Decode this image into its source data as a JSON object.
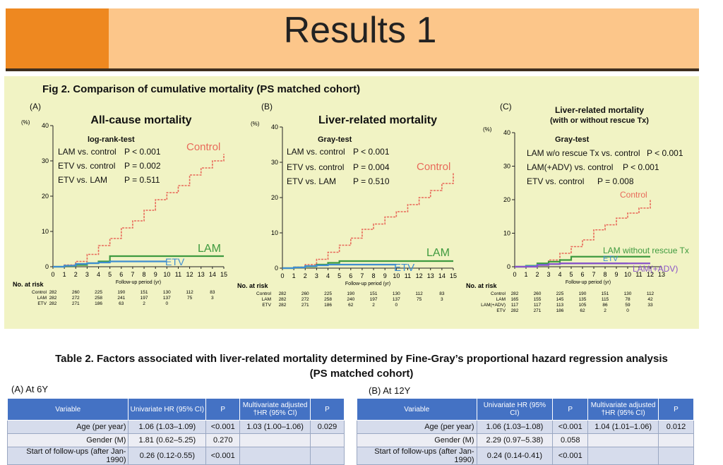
{
  "slide_title": "Results 1",
  "figure": {
    "title": "Fig 2. Comparison of cumulative mortality (PS matched cohort)",
    "colors": {
      "control": "#e86a5a",
      "lam": "#3f9a3f",
      "etv": "#3f8ed0",
      "lam_adv": "#8a52c8"
    },
    "panels": [
      {
        "label": "(A)",
        "title": "All-cause mortality",
        "test_name": "log-rank-test",
        "comparisons": [
          {
            "label": "LAM vs. control",
            "p": "P < 0.001"
          },
          {
            "label": "ETV vs. control",
            "p": "P = 0.002"
          },
          {
            "label": "ETV vs. LAM",
            "p": "P = 0.511"
          }
        ],
        "y_unit": "(%)",
        "y_ticks": [
          "0",
          "10",
          "20",
          "30",
          "40"
        ],
        "x_ticks": [
          "0",
          "1",
          "2",
          "3",
          "4",
          "5",
          "6",
          "7",
          "8",
          "9",
          "10",
          "11",
          "12",
          "13",
          "14",
          "15"
        ],
        "xlabel": "Follow-up period (yr)",
        "series_labels": {
          "control": "Control",
          "lam": "LAM",
          "etv": "ETV"
        },
        "risk_header": "No. at risk",
        "risk_rows": [
          {
            "name": "Control",
            "values": [
              "282",
              "260",
              "225",
              "190",
              "151",
              "130",
              "112",
              "83"
            ]
          },
          {
            "name": "LAM",
            "values": [
              "282",
              "272",
              "258",
              "241",
              "197",
              "137",
              "75",
              "3"
            ]
          },
          {
            "name": "ETV",
            "values": [
              "282",
              "271",
              "186",
              "63",
              "2",
              "0"
            ]
          }
        ]
      },
      {
        "label": "(B)",
        "title": "Liver-related mortality",
        "test_name": "Gray-test",
        "comparisons": [
          {
            "label": "LAM vs. control",
            "p": "P < 0.001"
          },
          {
            "label": "ETV vs. control",
            "p": "P = 0.004"
          },
          {
            "label": "ETV vs. LAM",
            "p": "P = 0.510"
          }
        ],
        "y_unit": "(%)",
        "y_ticks": [
          "0",
          "10",
          "20",
          "30",
          "40"
        ],
        "x_ticks": [
          "0",
          "1",
          "2",
          "3",
          "4",
          "5",
          "6",
          "7",
          "8",
          "9",
          "10",
          "11",
          "12",
          "13",
          "14",
          "15"
        ],
        "xlabel": "Follow-up period (yr)",
        "series_labels": {
          "control": "Control",
          "lam": "LAM",
          "etv": "ETV"
        },
        "risk_header": "No. at risk",
        "risk_rows": [
          {
            "name": "Control",
            "values": [
              "282",
              "260",
              "225",
              "190",
              "151",
              "130",
              "112",
              "83"
            ]
          },
          {
            "name": "LAM",
            "values": [
              "282",
              "272",
              "258",
              "240",
              "197",
              "137",
              "75",
              "3"
            ]
          },
          {
            "name": "ETV",
            "values": [
              "282",
              "271",
              "186",
              "62",
              "2",
              "0"
            ]
          }
        ]
      },
      {
        "label": "(C)",
        "title": "Liver-related mortality",
        "subtitle": "(with or without rescue Tx)",
        "test_name": "Gray-test",
        "comparisons": [
          {
            "label": "LAM w/o rescue Tx vs. control",
            "p": "P < 0.001"
          },
          {
            "label": "LAM(+ADV) vs. control",
            "p": "P < 0.001"
          },
          {
            "label": "ETV vs. control",
            "p": "P = 0.008"
          }
        ],
        "y_unit": "(%)",
        "y_ticks": [
          "0",
          "10",
          "20",
          "30",
          "40"
        ],
        "x_ticks": [
          "0",
          "1",
          "2",
          "3",
          "4",
          "5",
          "6",
          "7",
          "8",
          "9",
          "10",
          "11",
          "12",
          "13"
        ],
        "xlabel": "Follow-up period (yr)",
        "series_labels": {
          "control": "Control",
          "lam": "LAM without rescue Tx",
          "etv": "ETV",
          "lam_adv": "LAM(+ADV)"
        },
        "risk_header": "No. at risk",
        "risk_rows": [
          {
            "name": "Control",
            "values": [
              "282",
              "260",
              "225",
              "190",
              "151",
              "130",
              "112"
            ]
          },
          {
            "name": "LAM",
            "values": [
              "165",
              "155",
              "145",
              "135",
              "115",
              "78",
              "42"
            ]
          },
          {
            "name": "LAM(+ADV)",
            "values": [
              "117",
              "117",
              "113",
              "105",
              "86",
              "59",
              "33"
            ]
          },
          {
            "name": "ETV",
            "values": [
              "282",
              "271",
              "186",
              "62",
              "2",
              "0"
            ]
          }
        ]
      }
    ]
  },
  "chart_data": [
    {
      "type": "line",
      "title": "All-cause mortality",
      "xlabel": "Follow-up period (yr)",
      "ylabel": "(%)",
      "xlim": [
        0,
        15
      ],
      "ylim": [
        0,
        40
      ],
      "series": [
        {
          "name": "Control",
          "x": [
            0,
            1,
            2,
            3,
            4,
            5,
            6,
            7,
            8,
            9,
            10,
            11,
            12,
            13,
            14,
            15
          ],
          "values": [
            0,
            0.5,
            1.5,
            3.5,
            6,
            8,
            11,
            13,
            16,
            19,
            21,
            23,
            26,
            28,
            30,
            32
          ]
        },
        {
          "name": "LAM",
          "x": [
            0,
            1,
            2,
            3,
            4,
            5,
            6,
            7,
            8,
            9,
            10,
            11,
            12,
            13,
            14,
            15
          ],
          "values": [
            0,
            0.2,
            0.5,
            1,
            1.5,
            3,
            3,
            3,
            3,
            3,
            3,
            3,
            3,
            3,
            3,
            3
          ]
        },
        {
          "name": "ETV",
          "x": [
            0,
            1,
            2,
            3,
            4,
            5,
            6,
            7,
            8,
            9,
            10
          ],
          "values": [
            0,
            0.3,
            0.8,
            1,
            1.2,
            1.5,
            1.5,
            1.5,
            1.5,
            1.5,
            1.5
          ]
        }
      ]
    },
    {
      "type": "line",
      "title": "Liver-related mortality",
      "xlabel": "Follow-up period (yr)",
      "ylabel": "(%)",
      "xlim": [
        0,
        15
      ],
      "ylim": [
        0,
        40
      ],
      "series": [
        {
          "name": "Control",
          "x": [
            0,
            1,
            2,
            3,
            4,
            5,
            6,
            7,
            8,
            9,
            10,
            11,
            12,
            13,
            14,
            15
          ],
          "values": [
            0,
            0.3,
            1,
            2.5,
            4.5,
            6.5,
            8.5,
            11,
            12.5,
            14.5,
            16,
            18,
            20,
            22,
            24,
            27
          ]
        },
        {
          "name": "LAM",
          "x": [
            0,
            1,
            2,
            3,
            4,
            5,
            6,
            7,
            8,
            9,
            10,
            11,
            12,
            13,
            14,
            15
          ],
          "values": [
            0,
            0.2,
            0.5,
            1,
            1.5,
            2,
            2,
            2,
            2,
            2,
            2,
            2,
            2,
            2,
            2,
            2
          ]
        },
        {
          "name": "ETV",
          "x": [
            0,
            1,
            2,
            3,
            4,
            5,
            6,
            7,
            8,
            9,
            10
          ],
          "values": [
            0,
            0.2,
            0.6,
            0.8,
            1,
            1,
            1,
            1,
            1,
            1,
            1
          ]
        }
      ]
    },
    {
      "type": "line",
      "title": "Liver-related mortality (with or without rescue Tx)",
      "xlabel": "Follow-up period (yr)",
      "ylabel": "(%)",
      "xlim": [
        0,
        13
      ],
      "ylim": [
        0,
        40
      ],
      "series": [
        {
          "name": "Control",
          "x": [
            0,
            1,
            2,
            3,
            4,
            5,
            6,
            7,
            8,
            9,
            10,
            11,
            12
          ],
          "values": [
            0,
            0.3,
            1,
            2,
            4,
            6,
            8,
            11,
            12.5,
            14.5,
            16,
            17.5,
            20
          ]
        },
        {
          "name": "LAM without rescue Tx",
          "x": [
            0,
            1,
            2,
            3,
            4,
            5,
            6,
            7,
            8,
            9,
            10,
            11,
            12
          ],
          "values": [
            0,
            0.3,
            1,
            1.5,
            2,
            3,
            3,
            3,
            3,
            3,
            3,
            3,
            3
          ]
        },
        {
          "name": "ETV",
          "x": [
            0,
            1,
            2,
            3,
            4,
            5,
            6,
            7,
            8,
            9,
            10
          ],
          "values": [
            0,
            0.2,
            0.6,
            0.8,
            1,
            1,
            1,
            1,
            1,
            1,
            1
          ]
        },
        {
          "name": "LAM(+ADV)",
          "x": [
            0,
            1,
            2,
            3,
            4,
            5,
            6,
            7,
            8,
            9,
            10,
            11,
            12
          ],
          "values": [
            0,
            0,
            0.5,
            0.8,
            1,
            1,
            1,
            1,
            1,
            1,
            1,
            1,
            1
          ]
        }
      ]
    }
  ],
  "table2": {
    "title_line1": "Table 2. Factors associated with liver-related mortality determined by Fine-Gray’s proportional hazard regression analysis",
    "title_line2": "(PS matched cohort)",
    "headers": [
      "Variable",
      "Univariate HR (95% CI)",
      "P",
      "Multivariate adjusted †HR (95% CI)",
      "P"
    ],
    "sections": [
      {
        "label": "(A) At 6Y",
        "rows": [
          [
            "Age (per year)",
            "1.06 (1.03–1.09)",
            "<0.001",
            "1.03 (1.00–1.06)",
            "0.029"
          ],
          [
            "Gender (M)",
            "1.81 (0.62–5.25)",
            "0.270",
            "",
            ""
          ],
          [
            "Start of follow-ups (after Jan-1990)",
            "0.26 (0.12-0.55)",
            "<0.001",
            "",
            ""
          ]
        ]
      },
      {
        "label": "(B) At 12Y",
        "rows": [
          [
            "Age (per year)",
            "1.06 (1.03–1.08)",
            "<0.001",
            "1.04 (1.01–1.06)",
            "0.012"
          ],
          [
            "Gender (M)",
            "2.29 (0.97–5.38)",
            "0.058",
            "",
            ""
          ],
          [
            "Start of follow-ups (after Jan-1990)",
            "0.24 (0.14-0.41)",
            "<0.001",
            "",
            ""
          ]
        ]
      }
    ]
  }
}
